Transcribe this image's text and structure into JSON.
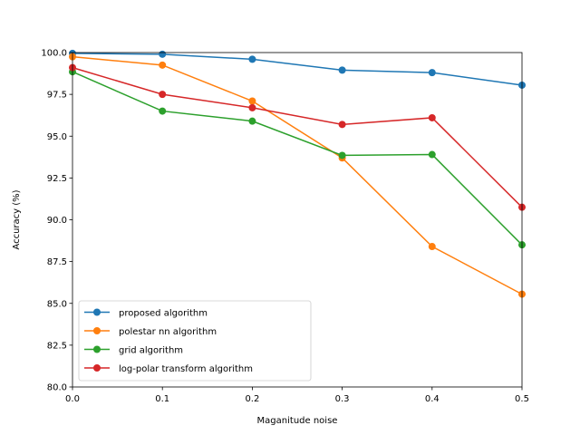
{
  "chart_data": {
    "type": "line",
    "title": "",
    "xlabel": "Maganitude noise",
    "ylabel": "Accuracy (%)",
    "x": [
      0.0,
      0.1,
      0.2,
      0.3,
      0.4,
      0.5
    ],
    "xlim": [
      0.0,
      0.5
    ],
    "ylim": [
      80.0,
      100.0
    ],
    "xticks": [
      0.0,
      0.1,
      0.2,
      0.3,
      0.4,
      0.5
    ],
    "xtick_labels": [
      "0.0",
      "0.1",
      "0.2",
      "0.3",
      "0.4",
      "0.5"
    ],
    "yticks": [
      80.0,
      82.5,
      85.0,
      87.5,
      90.0,
      92.5,
      95.0,
      97.5,
      100.0
    ],
    "ytick_labels": [
      "80.0",
      "82.5",
      "85.0",
      "87.5",
      "90.0",
      "92.5",
      "95.0",
      "97.5",
      "100.0"
    ],
    "grid": false,
    "legend_position": "lower-left",
    "series": [
      {
        "name": "proposed algorithm",
        "color": "#1f77b4",
        "values": [
          99.95,
          99.9,
          99.6,
          98.95,
          98.8,
          98.05
        ]
      },
      {
        "name": "polestar nn algorithm",
        "color": "#ff7f0e",
        "values": [
          99.75,
          99.25,
          97.1,
          93.7,
          88.4,
          85.55
        ]
      },
      {
        "name": "grid algorithm",
        "color": "#2ca02c",
        "values": [
          98.85,
          96.5,
          95.9,
          93.85,
          93.9,
          88.5
        ]
      },
      {
        "name": "log-polar transform algorithm",
        "color": "#d62728",
        "values": [
          99.1,
          97.5,
          96.7,
          95.7,
          96.1,
          90.75
        ]
      }
    ]
  }
}
